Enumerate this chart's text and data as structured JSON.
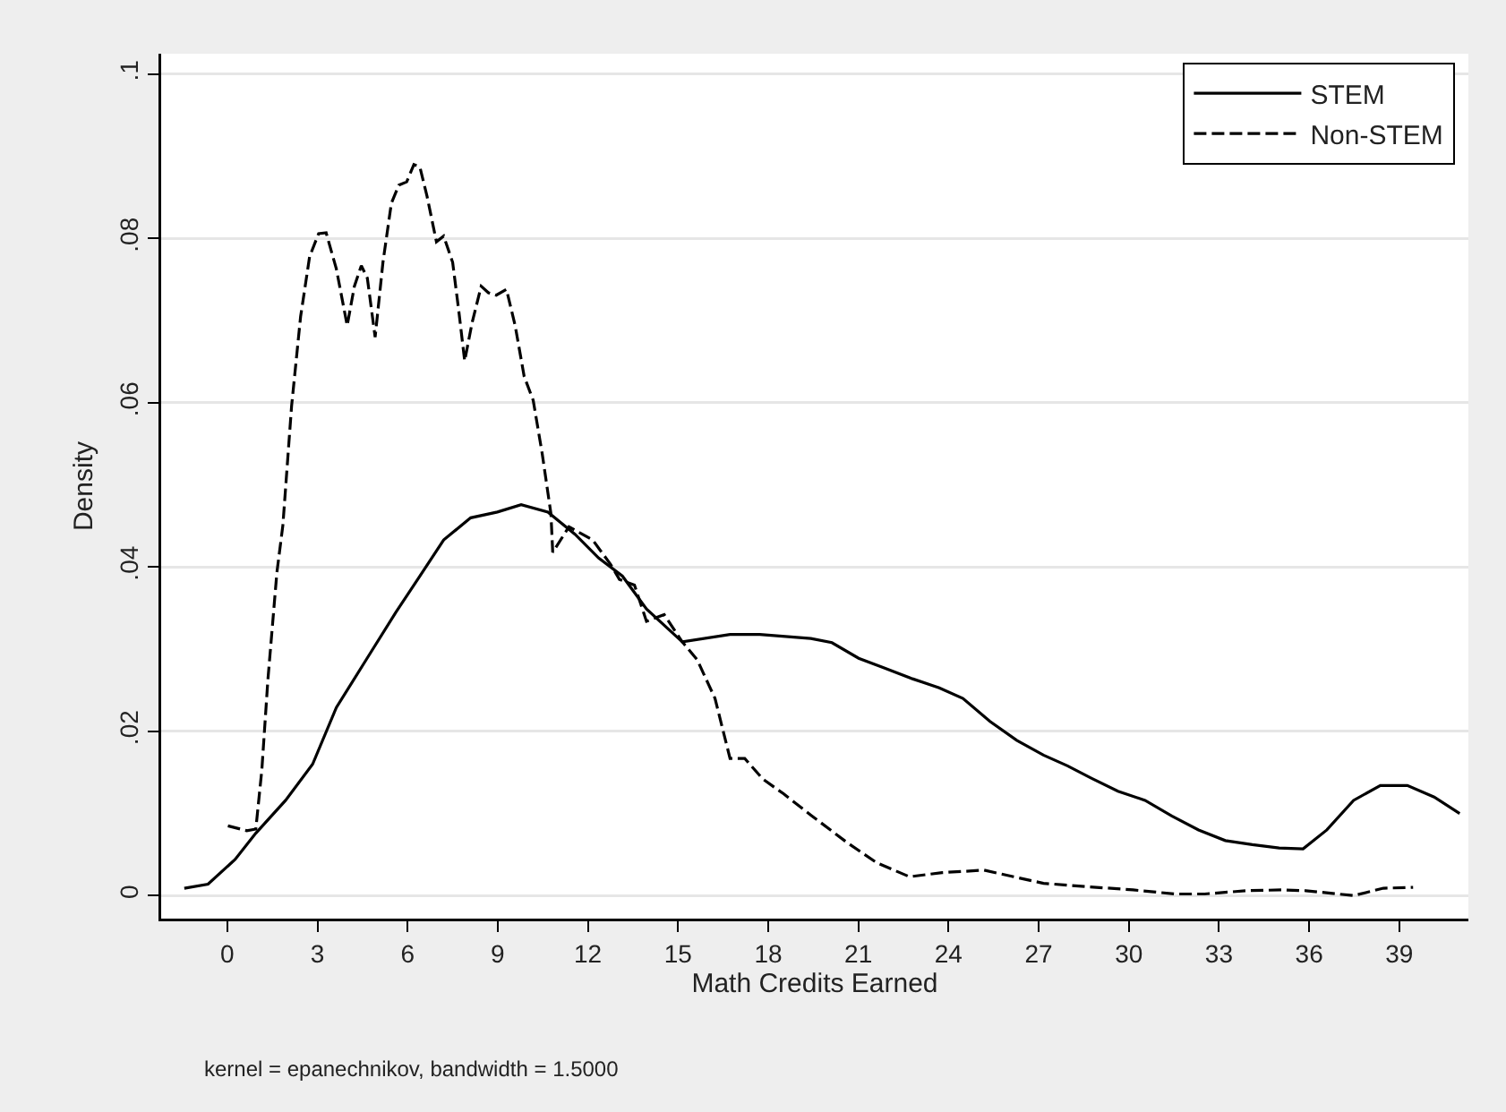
{
  "chart_data": {
    "type": "line",
    "xlabel": "Math Credits Earned",
    "ylabel": "Density",
    "annotations": [
      "kernel = epanechnikov, bandwidth = 1.5000"
    ],
    "xlim": [
      -2.2,
      41.3
    ],
    "xticks": [
      0,
      3,
      6,
      9,
      12,
      15,
      18,
      21,
      24,
      27,
      30,
      33,
      36,
      39
    ],
    "ylim": [
      -0.0028,
      0.1025
    ],
    "yticks": [
      {
        "value": 0,
        "label": "0"
      },
      {
        "value": 0.02,
        "label": ".02"
      },
      {
        "value": 0.04,
        "label": ".04"
      },
      {
        "value": 0.06,
        "label": ".06"
      },
      {
        "value": 0.08,
        "label": ".08"
      },
      {
        "value": 0.1,
        "label": ".1"
      }
    ],
    "grid": "y",
    "legend": "top right",
    "marker": "none",
    "series": [
      {
        "name": "STEM",
        "color": "#000000",
        "line_style": "solid",
        "x": [
          -1.43,
          -0.64,
          0.26,
          0.95,
          1.94,
          2.84,
          3.63,
          4.62,
          5.61,
          6.41,
          7.2,
          8.1,
          8.99,
          9.78,
          10.67,
          11.57,
          12.36,
          13.15,
          13.95,
          15.14,
          16.73,
          17.72,
          19.42,
          20.12,
          21.01,
          21.8,
          22.8,
          23.69,
          24.48,
          25.38,
          26.27,
          27.16,
          27.96,
          28.75,
          29.64,
          30.54,
          31.43,
          32.32,
          33.21,
          34.11,
          35,
          35.8,
          36.59,
          37.48,
          38.37,
          39.27,
          40.16,
          41.01
        ],
        "values": [
          0.0009,
          0.0014,
          0.0044,
          0.0076,
          0.0116,
          0.016,
          0.0229,
          0.0287,
          0.0345,
          0.0389,
          0.0433,
          0.046,
          0.0467,
          0.0476,
          0.0467,
          0.044,
          0.0411,
          0.0389,
          0.0349,
          0.0309,
          0.0318,
          0.0318,
          0.0313,
          0.0308,
          0.0289,
          0.0278,
          0.0264,
          0.0253,
          0.024,
          0.0212,
          0.0189,
          0.0171,
          0.0158,
          0.0143,
          0.0127,
          0.0116,
          0.0097,
          0.008,
          0.0067,
          0.0062,
          0.0058,
          0.0057,
          0.008,
          0.0116,
          0.0134,
          0.0134,
          0.012,
          0.01
        ]
      },
      {
        "name": "Non-STEM",
        "color": "#000000",
        "line_style": "dashed",
        "x": [
          0.02,
          0.65,
          0.95,
          1.15,
          1.35,
          1.65,
          1.85,
          2.14,
          2.44,
          2.74,
          3.04,
          3.29,
          3.63,
          3.99,
          4.23,
          4.46,
          4.66,
          4.92,
          5.18,
          5.46,
          5.71,
          5.97,
          6.21,
          6.41,
          6.65,
          6.96,
          7.2,
          7.5,
          7.7,
          7.9,
          8.15,
          8.45,
          8.69,
          8.95,
          9.29,
          9.58,
          9.88,
          10.18,
          10.48,
          10.77,
          10.83,
          11.37,
          12.16,
          12.76,
          13.05,
          13.55,
          13.95,
          14.54,
          15.14,
          15.64,
          16.23,
          16.73,
          17.22,
          17.82,
          18.51,
          19.42,
          20.61,
          21.61,
          22.7,
          23.79,
          25.18,
          26.17,
          27.16,
          28.55,
          30.14,
          31.53,
          32.52,
          33.91,
          35.1,
          35.89,
          37.48,
          38.47,
          39.46
        ],
        "values": [
          0.0085,
          0.0079,
          0.0081,
          0.0153,
          0.0262,
          0.0393,
          0.0451,
          0.0596,
          0.0705,
          0.0778,
          0.0806,
          0.0807,
          0.0763,
          0.0694,
          0.0742,
          0.0767,
          0.0752,
          0.068,
          0.0771,
          0.0843,
          0.0865,
          0.0869,
          0.089,
          0.0887,
          0.0851,
          0.0796,
          0.0803,
          0.0771,
          0.0713,
          0.0651,
          0.0698,
          0.0742,
          0.0734,
          0.0731,
          0.0738,
          0.0694,
          0.0632,
          0.0603,
          0.0538,
          0.0465,
          0.0418,
          0.0449,
          0.0433,
          0.0403,
          0.0385,
          0.0378,
          0.0334,
          0.0342,
          0.0309,
          0.0287,
          0.024,
          0.0167,
          0.0167,
          0.0142,
          0.0124,
          0.0098,
          0.0065,
          0.004,
          0.0023,
          0.0028,
          0.0031,
          0.0023,
          0.0015,
          0.0011,
          0.0007,
          0.0002,
          0.0002,
          0.0006,
          0.0007,
          0.0006,
          0,
          0.0009,
          0.001
        ]
      }
    ]
  }
}
